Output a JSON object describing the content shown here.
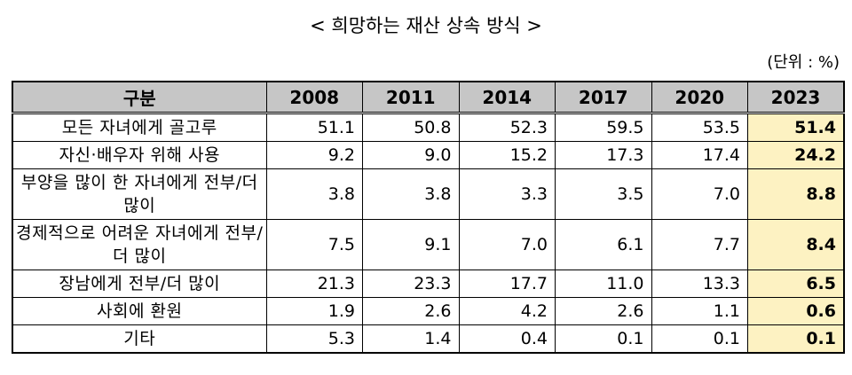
{
  "title": "< 희망하는 재산 상속 방식 >",
  "unit": "(단위 : %)",
  "table": {
    "header": [
      "구분",
      "2008",
      "2011",
      "2014",
      "2017",
      "2020",
      "2023"
    ],
    "rows": [
      {
        "label": "모든 자녀에게 골고루",
        "values": [
          "51.1",
          "50.8",
          "52.3",
          "59.5",
          "53.5",
          "51.4"
        ]
      },
      {
        "label": "자신·배우자 위해 사용",
        "values": [
          "9.2",
          "9.0",
          "15.2",
          "17.3",
          "17.4",
          "24.2"
        ]
      },
      {
        "label": "부양을 많이 한 자녀에게 전부/더 많이",
        "values": [
          "3.8",
          "3.8",
          "3.3",
          "3.5",
          "7.0",
          "8.8"
        ]
      },
      {
        "label": "경제적으로 어려운 자녀에게 전부/더 많이",
        "values": [
          "7.5",
          "9.1",
          "7.0",
          "6.1",
          "7.7",
          "8.4"
        ]
      },
      {
        "label": "장남에게 전부/더 많이",
        "values": [
          "21.3",
          "23.3",
          "17.7",
          "11.0",
          "13.3",
          "6.5"
        ]
      },
      {
        "label": "사회에 환원",
        "values": [
          "1.9",
          "2.6",
          "4.2",
          "2.6",
          "1.1",
          "0.6"
        ]
      },
      {
        "label": "기타",
        "values": [
          "5.3",
          "1.4",
          "0.4",
          "0.1",
          "0.1",
          "0.1"
        ]
      }
    ]
  },
  "colors": {
    "header_bg": "#c6c6c6",
    "highlight_column_bg": "#fdf2c2"
  }
}
